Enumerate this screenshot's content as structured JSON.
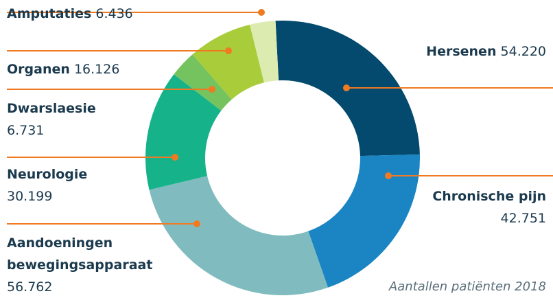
{
  "chart_data": {
    "type": "donut",
    "categories": [
      "Hersenen",
      "Chronische pijn",
      "Aandoeningen bewegingsapparaat",
      "Neurologie",
      "Dwarslaesie",
      "Organen",
      "Amputaties"
    ],
    "values": [
      54220,
      42751,
      56762,
      30199,
      6731,
      16126,
      6436
    ],
    "value_labels": [
      "54.220",
      "42.751",
      "56.762",
      "30.199",
      "6.731",
      "16.126",
      "6.436"
    ],
    "colors": [
      "#034a6e",
      "#1a85c2",
      "#80bcbf",
      "#16b38b",
      "#74c35f",
      "#a9cc3b",
      "#dcebb0"
    ],
    "note": "Aantallen patiënten 2018"
  }
}
